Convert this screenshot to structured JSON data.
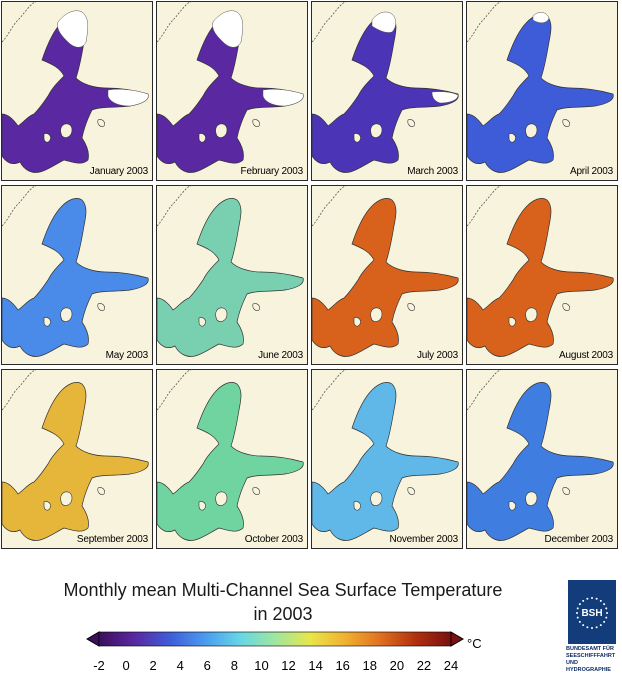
{
  "panels": [
    {
      "label": "January 2003",
      "color": "#5a28a0",
      "ice": true,
      "iceSize": "large"
    },
    {
      "label": "February 2003",
      "color": "#5a28a0",
      "ice": true,
      "iceSize": "large"
    },
    {
      "label": "March 2003",
      "color": "#4b34b5",
      "ice": true,
      "iceSize": "small"
    },
    {
      "label": "April 2003",
      "color": "#3f5cd8",
      "ice": true,
      "iceSize": "tiny"
    },
    {
      "label": "May 2003",
      "color": "#4a8ae8",
      "ice": false
    },
    {
      "label": "June 2003",
      "color": "#78d0b0",
      "ice": false
    },
    {
      "label": "July 2003",
      "color": "#d8621c",
      "ice": false
    },
    {
      "label": "August 2003",
      "color": "#d8621c",
      "ice": false
    },
    {
      "label": "September 2003",
      "color": "#e6b63a",
      "ice": false
    },
    {
      "label": "October 2003",
      "color": "#6fd4a0",
      "ice": false
    },
    {
      "label": "November 2003",
      "color": "#5fb8e8",
      "ice": false
    },
    {
      "label": "December 2003",
      "color": "#3f7ee0",
      "ice": false
    }
  ],
  "title_line1": "Monthly mean Multi-Channel Sea Surface Temperature",
  "title_line2": "in 2003",
  "scale": {
    "ticks": [
      "-2",
      "0",
      "2",
      "4",
      "6",
      "8",
      "10",
      "12",
      "14",
      "16",
      "18",
      "20",
      "22",
      "24"
    ],
    "unit": "°C",
    "colors": [
      "#3b0f5c",
      "#5a28a0",
      "#3f5cd8",
      "#4a9af0",
      "#66d6e6",
      "#9ee6a0",
      "#e8e64a",
      "#f0b030",
      "#e07020",
      "#b03010",
      "#7a1010"
    ]
  },
  "logo": {
    "abbr": "BSH",
    "lines": [
      "BUNDESAMT FÜR",
      "SEESCHIFFFAHRT",
      "UND",
      "HYDROGRAPHIE"
    ]
  }
}
